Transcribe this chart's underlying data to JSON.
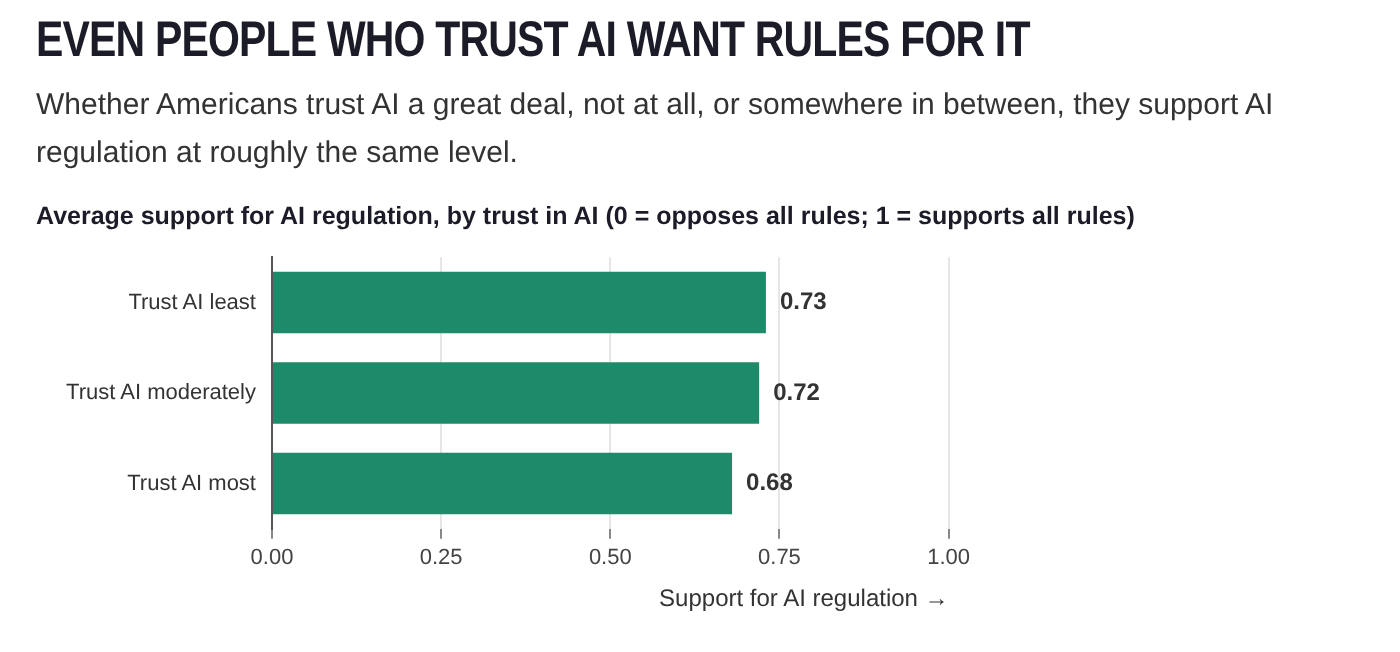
{
  "chart_data": {
    "type": "bar",
    "orientation": "horizontal",
    "title": "EVEN PEOPLE WHO TRUST AI WANT RULES FOR IT",
    "subtitle": "Whether Americans trust AI a great deal, not at all, or somewhere in between, they support AI regulation at roughly the same level.",
    "annotations": [
      "Average support for AI regulation, by trust in AI (0 = opposes all rules; 1 = supports all rules)"
    ],
    "categories": [
      "Trust AI least",
      "Trust AI moderately",
      "Trust AI most"
    ],
    "values": [
      0.73,
      0.72,
      0.68
    ],
    "color": "#1e8a6a",
    "xlim": [
      0,
      1
    ],
    "xticks": [
      {
        "value": 0,
        "label": "0.00"
      },
      {
        "value": 0.25,
        "label": "0.25"
      },
      {
        "value": 0.5,
        "label": "0.50"
      },
      {
        "value": 0.75,
        "label": "0.75"
      },
      {
        "value": 1,
        "label": "1.00"
      }
    ],
    "xlabel": "Support for AI regulation →",
    "grid": "x",
    "data_labels": true,
    "legend": false
  }
}
